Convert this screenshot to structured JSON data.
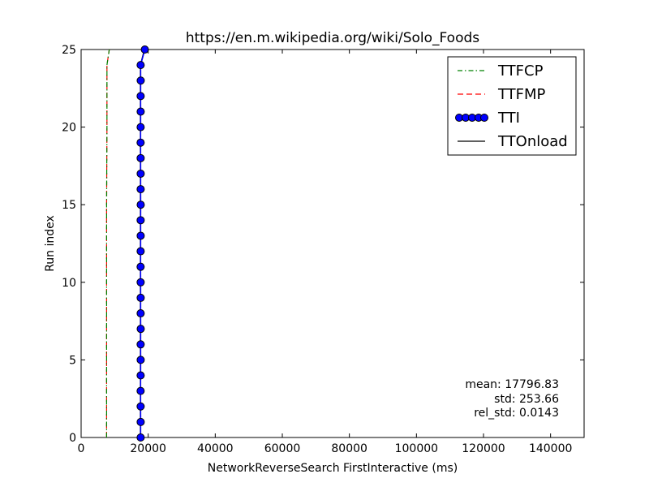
{
  "chart_data": {
    "type": "line",
    "title": "https://en.m.wikipedia.org/wiki/Solo_Foods",
    "xlabel": "NetworkReverseSearch FirstInteractive (ms)",
    "ylabel": "Run index",
    "xlim": [
      0,
      150000
    ],
    "ylim": [
      0,
      25
    ],
    "xticks": [
      0,
      20000,
      40000,
      60000,
      80000,
      100000,
      120000,
      140000
    ],
    "yticks": [
      0,
      5,
      10,
      15,
      20,
      25
    ],
    "grid": false,
    "legend_position": "top-right",
    "series": [
      {
        "name": "TTFCP",
        "style": "dash-dot",
        "color": "#008000",
        "points": [
          [
            7600,
            0
          ],
          [
            7600,
            5
          ],
          [
            7600,
            10
          ],
          [
            7600,
            15
          ],
          [
            7700,
            20
          ],
          [
            7700,
            24
          ],
          [
            8400,
            25
          ]
        ]
      },
      {
        "name": "TTFMP",
        "style": "dashed",
        "color": "#ff0000",
        "points": [
          [
            7600,
            0
          ],
          [
            7600,
            5
          ],
          [
            7600,
            10
          ],
          [
            7600,
            15
          ],
          [
            7700,
            20
          ],
          [
            7700,
            24
          ],
          [
            8400,
            25
          ]
        ]
      },
      {
        "name": "TTI",
        "style": "line-markers",
        "color": "#0000ff",
        "x": [
          17750,
          17760,
          17750,
          17740,
          17750,
          17760,
          17750,
          17770,
          17750,
          17760,
          17750,
          17740,
          17750,
          17760,
          17750,
          17770,
          17750,
          17760,
          17750,
          17740,
          17750,
          17760,
          17750,
          17770,
          17750,
          19000
        ],
        "y": [
          0,
          1,
          2,
          3,
          4,
          5,
          6,
          7,
          8,
          9,
          10,
          11,
          12,
          13,
          14,
          15,
          16,
          17,
          18,
          19,
          20,
          21,
          22,
          23,
          24,
          25
        ]
      },
      {
        "name": "TTOnload",
        "style": "solid",
        "color": "#000000",
        "points": [
          [
            17700,
            0
          ],
          [
            17700,
            24
          ],
          [
            18900,
            25
          ]
        ]
      }
    ],
    "annotations": {
      "mean": "mean: 17796.83",
      "std": "std: 253.66",
      "rel_std": "rel_std: 0.0143"
    }
  }
}
